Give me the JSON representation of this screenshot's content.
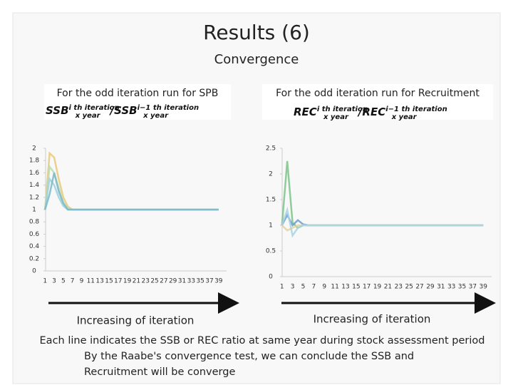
{
  "slide": {
    "title": "Results (6)",
    "subtitle": "Convergence",
    "arrow_label_left": "Increasing of iteration",
    "arrow_label_right": "Increasing of iteration",
    "notes": [
      "Each line indicates the SSB or REC ratio at same year during stock assessment period",
      "By the Raabe's convergence test, we can conclude the SSB and",
      "Recruitment will be converge"
    ]
  },
  "chart_data": [
    {
      "type": "line",
      "title": "For the odd iteration run for SPB",
      "formula": {
        "base": "SSB",
        "sup": "i th iteration",
        "sub": "x year",
        "sep": "/",
        "base2": "SSB",
        "sup2": "i−1 th iteration",
        "sub2": "x year"
      },
      "categories": [
        1,
        null,
        3,
        null,
        5,
        null,
        7,
        null,
        9,
        null,
        11,
        null,
        13,
        null,
        15,
        null,
        17,
        null,
        19,
        null,
        21,
        null,
        23,
        null,
        25,
        null,
        27,
        null,
        29,
        null,
        31,
        null,
        33,
        null,
        35,
        null,
        37,
        null,
        39
      ],
      "ylim": [
        0,
        2
      ],
      "yticks": [
        0,
        0.2,
        0.4,
        0.6,
        0.8,
        1,
        1.2,
        1.4,
        1.6,
        1.8,
        2
      ],
      "series": [
        {
          "color": "#e8c97a",
          "values": [
            1,
            1.92,
            1.85,
            1.5,
            1.2,
            1.05,
            1,
            1,
            1,
            1,
            1,
            1,
            1,
            1,
            1,
            1,
            1,
            1,
            1,
            1,
            1,
            1,
            1,
            1,
            1,
            1,
            1,
            1,
            1,
            1,
            1,
            1,
            1,
            1,
            1,
            1,
            1,
            1,
            1
          ]
        },
        {
          "color": "#b9dcb0",
          "values": [
            1,
            1.7,
            1.6,
            1.35,
            1.12,
            1.02,
            1,
            1,
            1,
            1,
            1,
            1,
            1,
            1,
            1,
            1,
            1,
            1,
            1,
            1,
            1,
            1,
            1,
            1,
            1,
            1,
            1,
            1,
            1,
            1,
            1,
            1,
            1,
            1,
            1,
            1,
            1,
            1,
            1
          ]
        },
        {
          "color": "#9fd0e0",
          "values": [
            1,
            1.5,
            1.4,
            1.2,
            1.06,
            1,
            1,
            1,
            1,
            1,
            1,
            1,
            1,
            1,
            1,
            1,
            1,
            1,
            1,
            1,
            1,
            1,
            1,
            1,
            1,
            1,
            1,
            1,
            1,
            1,
            1,
            1,
            1,
            1,
            1,
            1,
            1,
            1,
            1
          ]
        },
        {
          "color": "#7ab8c8",
          "values": [
            1,
            1.25,
            1.6,
            1.3,
            1.1,
            1,
            1,
            1,
            1,
            1,
            1,
            1,
            1,
            1,
            1,
            1,
            1,
            1,
            1,
            1,
            1,
            1,
            1,
            1,
            1,
            1,
            1,
            1,
            1,
            1,
            1,
            1,
            1,
            1,
            1,
            1,
            1,
            1,
            1
          ]
        }
      ]
    },
    {
      "type": "line",
      "title": "For the odd iteration run for Recruitment",
      "formula": {
        "base": "REC",
        "sup": "i th iteration",
        "sub": "x year",
        "sep": "/",
        "base2": "REC",
        "sup2": "i−1 th iteration",
        "sub2": "x year"
      },
      "categories": [
        1,
        null,
        3,
        null,
        5,
        null,
        7,
        null,
        9,
        null,
        11,
        null,
        13,
        null,
        15,
        null,
        17,
        null,
        19,
        null,
        21,
        null,
        23,
        null,
        25,
        null,
        27,
        null,
        29,
        null,
        31,
        null,
        33,
        null,
        35,
        null,
        37,
        null,
        39
      ],
      "ylim": [
        0,
        2.5
      ],
      "yticks": [
        0,
        0.5,
        1,
        1.5,
        2,
        2.5
      ],
      "series": [
        {
          "color": "#7cc48a",
          "values": [
            1,
            2.25,
            1.05,
            0.95,
            1,
            1,
            1,
            1,
            1,
            1,
            1,
            1,
            1,
            1,
            1,
            1,
            1,
            1,
            1,
            1,
            1,
            1,
            1,
            1,
            1,
            1,
            1,
            1,
            1,
            1,
            1,
            1,
            1,
            1,
            1,
            1,
            1,
            1,
            1
          ]
        },
        {
          "color": "#6a9fd0",
          "values": [
            1,
            1.2,
            1,
            1.1,
            1.02,
            1,
            1,
            1,
            1,
            1,
            1,
            1,
            1,
            1,
            1,
            1,
            1,
            1,
            1,
            1,
            1,
            1,
            1,
            1,
            1,
            1,
            1,
            1,
            1,
            1,
            1,
            1,
            1,
            1,
            1,
            1,
            1,
            1,
            1
          ]
        },
        {
          "color": "#e8d49a",
          "values": [
            1,
            0.9,
            0.95,
            1,
            1,
            1,
            1,
            1,
            1,
            1,
            1,
            1,
            1,
            1,
            1,
            1,
            1,
            1,
            1,
            1,
            1,
            1,
            1,
            1,
            1,
            1,
            1,
            1,
            1,
            1,
            1,
            1,
            1,
            1,
            1,
            1,
            1,
            1,
            1
          ]
        },
        {
          "color": "#a8d4e4",
          "values": [
            1,
            1.3,
            0.8,
            0.95,
            1,
            1,
            1,
            1,
            1,
            1,
            1,
            1,
            1,
            1,
            1,
            1,
            1,
            1,
            1,
            1,
            1,
            1,
            1,
            1,
            1,
            1,
            1,
            1,
            1,
            1,
            1,
            1,
            1,
            1,
            1,
            1,
            1,
            1,
            1
          ]
        }
      ]
    }
  ]
}
